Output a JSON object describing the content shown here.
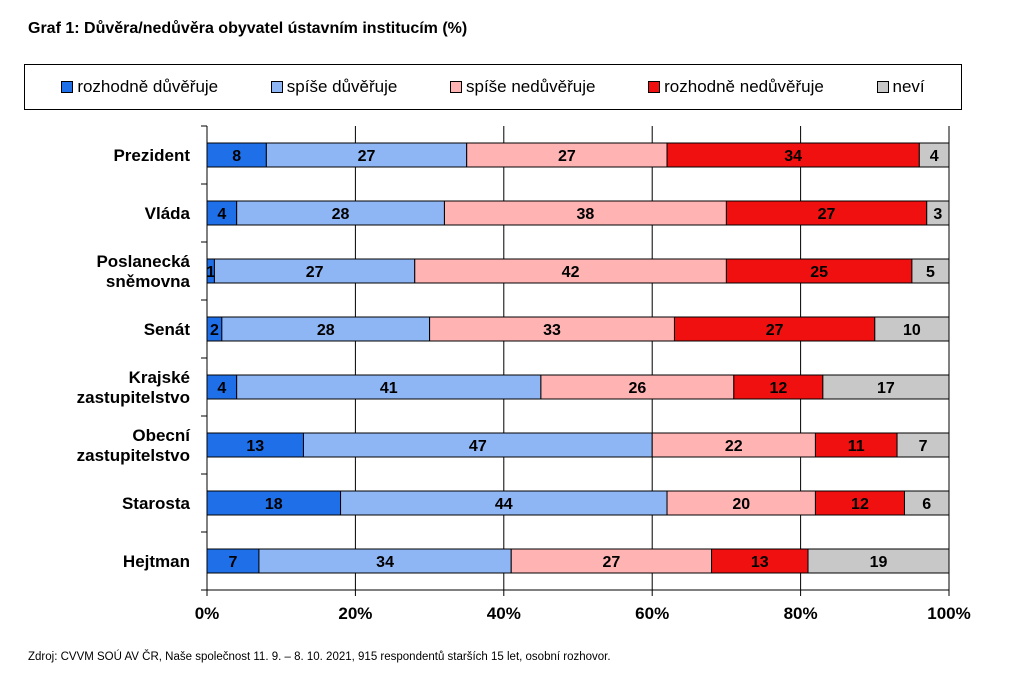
{
  "title": "Graf 1: Důvěra/nedůvěra obyvatel ústavním institucím (%)",
  "source": "Zdroj: CVVM SOÚ AV ČR, Naše společnost 11.  9. – 8. 10. 2021, 915 respondentů starších 15 let, osobní rozhovor.",
  "chart_data": {
    "type": "bar",
    "orientation": "horizontal",
    "stacked": "percent",
    "title": "Graf 1: Důvěra/nedůvěra obyvatel ústavním institucím (%)",
    "categories": [
      [
        "Prezident"
      ],
      [
        "Vláda"
      ],
      [
        "Poslanecká",
        "sněmovna"
      ],
      [
        "Senát"
      ],
      [
        "Krajské",
        "zastupitelstvo"
      ],
      [
        "Obecní",
        "zastupitelstvo"
      ],
      [
        "Starosta"
      ],
      [
        "Hejtman"
      ]
    ],
    "series": [
      {
        "name": "rozhodně důvěřuje",
        "color": "#1f6fe8",
        "values": [
          8,
          4,
          1,
          2,
          4,
          13,
          18,
          7
        ]
      },
      {
        "name": "spíše důvěřuje",
        "color": "#8fb6f4",
        "values": [
          27,
          28,
          27,
          28,
          41,
          47,
          44,
          34
        ]
      },
      {
        "name": "spíše nedůvěřuje",
        "color": "#ffb3b3",
        "values": [
          27,
          38,
          42,
          33,
          26,
          22,
          20,
          27
        ]
      },
      {
        "name": "rozhodně nedůvěřuje",
        "color": "#f01010",
        "values": [
          34,
          27,
          25,
          27,
          12,
          11,
          12,
          13
        ]
      },
      {
        "name": "neví",
        "color": "#c8c8c8",
        "values": [
          4,
          3,
          5,
          10,
          17,
          7,
          6,
          19
        ]
      }
    ],
    "xlim": [
      0,
      100
    ],
    "xticks": [
      "0%",
      "20%",
      "40%",
      "60%",
      "80%",
      "100%"
    ],
    "legend_position": "top",
    "grid": "vertical"
  }
}
